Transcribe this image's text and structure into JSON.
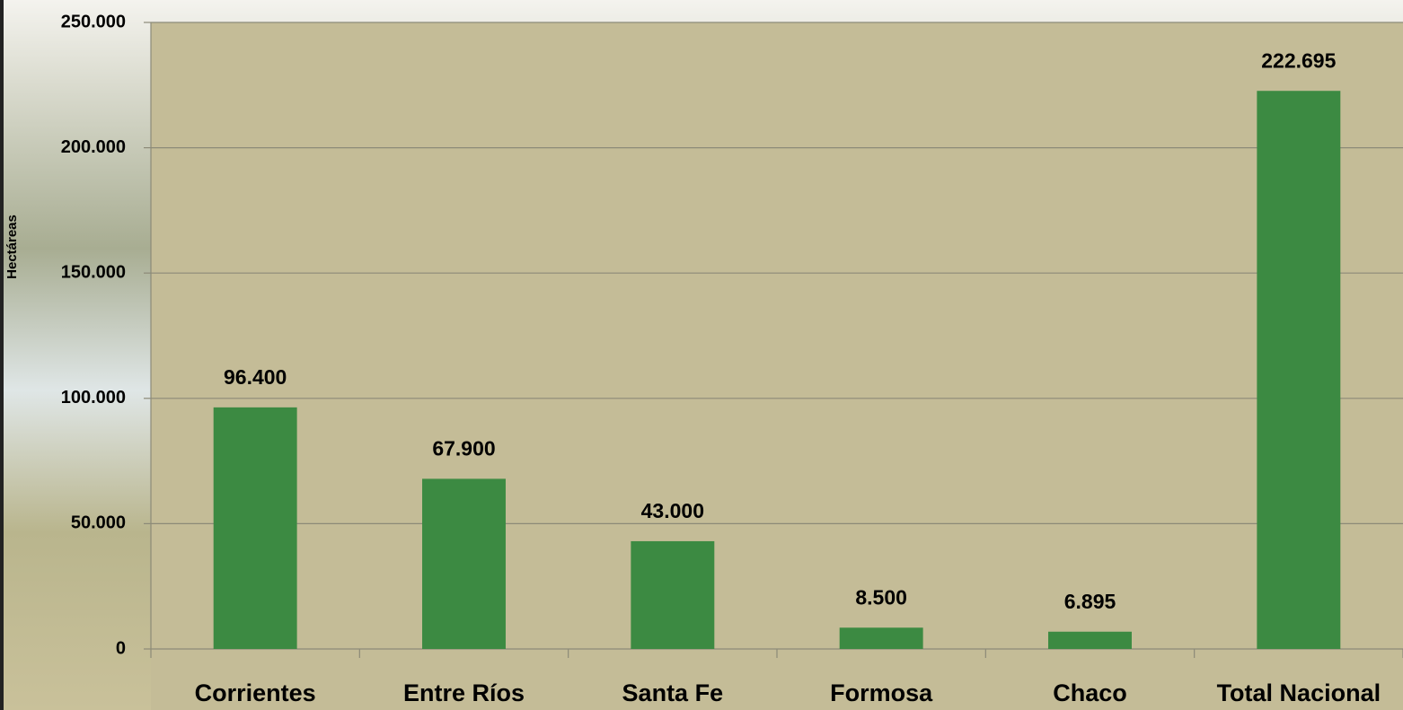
{
  "chart_data": {
    "type": "bar",
    "y_label": "Hectáreas",
    "categories": [
      "Corrientes",
      "Entre Ríos",
      "Santa Fe",
      "Formosa",
      "Chaco",
      "Total Nacional"
    ],
    "values": [
      96400,
      67900,
      43000,
      8500,
      6895,
      222695
    ],
    "value_labels": [
      "96.400",
      "67.900",
      "43.000",
      "8.500",
      "6.895",
      "222.695"
    ],
    "color": "#3c8a42",
    "ylim": [
      0,
      250000
    ],
    "yticks": [
      0,
      {
        "value": 50000,
        "label": "50.000"
      },
      {
        "value": 100000,
        "label": "100.000"
      },
      {
        "value": 150000,
        "label": "150.000"
      },
      {
        "value": 200000,
        "label": "200.000"
      },
      {
        "value": 250000,
        "label": "250.000"
      }
    ],
    "grid": true
  }
}
